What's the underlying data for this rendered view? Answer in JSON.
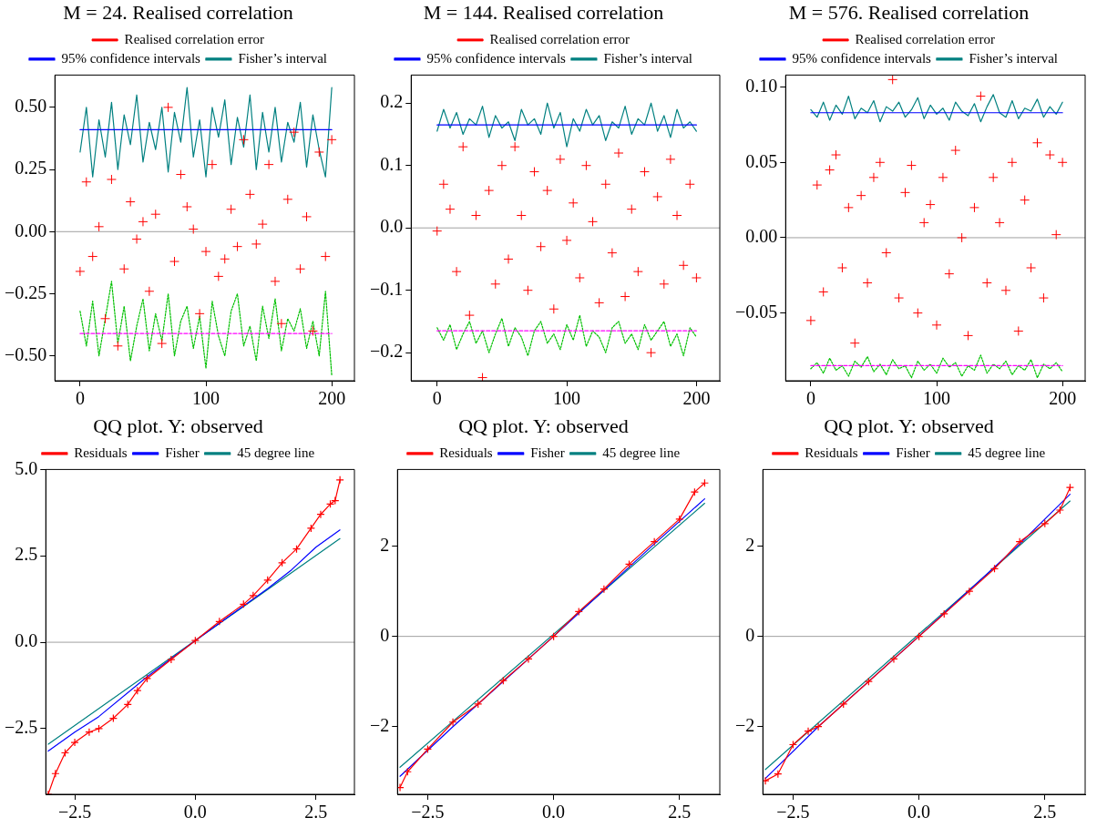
{
  "chart_data": [
    {
      "type": "scatter",
      "title": "M = 24. Realised correlation",
      "legend": "top",
      "xlim": [
        -20,
        218
      ],
      "xticks": [
        0,
        100,
        200
      ],
      "ylim": [
        -0.6,
        0.63
      ],
      "yticks": [
        {
          "value": -0.5,
          "label": "−0.50"
        },
        {
          "value": -0.25,
          "label": "−0.25"
        },
        {
          "value": 0,
          "label": "0.00"
        },
        {
          "value": 0.25,
          "label": "0.25"
        },
        {
          "value": 0.5,
          "label": "0.50"
        }
      ],
      "ref_lines": [
        {
          "axis": "y",
          "value": 0,
          "color": "#a0a0a0"
        }
      ],
      "series": [
        {
          "name": "Realised correlation error",
          "marker": "cross",
          "color": "#ff0000",
          "x": [
            0,
            5,
            10,
            15,
            20,
            25,
            30,
            35,
            40,
            45,
            50,
            55,
            60,
            65,
            70,
            75,
            80,
            85,
            90,
            95,
            100,
            105,
            110,
            115,
            120,
            125,
            130,
            135,
            140,
            145,
            150,
            155,
            160,
            165,
            170,
            175,
            180,
            185,
            190,
            195,
            200
          ],
          "values": [
            -0.16,
            0.2,
            -0.1,
            0.02,
            -0.35,
            0.21,
            -0.46,
            -0.15,
            0.12,
            -0.03,
            0.04,
            -0.24,
            0.07,
            -0.45,
            0.5,
            -0.12,
            0.23,
            0.1,
            0.01,
            -0.33,
            -0.08,
            0.27,
            -0.18,
            -0.11,
            0.09,
            -0.06,
            0.37,
            0.15,
            -0.05,
            0.03,
            0.27,
            -0.2,
            -0.37,
            0.13,
            0.4,
            -0.15,
            0.06,
            -0.4,
            0.32,
            -0.1,
            0.37
          ]
        },
        {
          "name": "95% confidence intervals",
          "type": "line",
          "marker": "none",
          "line_style": "solid",
          "color": "#0000ff",
          "x": [
            0,
            200
          ],
          "values": [
            0.41,
            0.41
          ]
        },
        {
          "name": "Fisher’s interval",
          "type": "line",
          "marker": "none",
          "line_style": "solid",
          "color": "#008080",
          "x": [
            0,
            5,
            10,
            15,
            20,
            25,
            30,
            35,
            40,
            45,
            50,
            55,
            60,
            65,
            70,
            75,
            80,
            85,
            90,
            95,
            100,
            105,
            110,
            115,
            120,
            125,
            130,
            135,
            140,
            145,
            150,
            155,
            160,
            165,
            170,
            175,
            180,
            185,
            190,
            195,
            200
          ],
          "values": [
            0.32,
            0.5,
            0.22,
            0.45,
            0.3,
            0.52,
            0.25,
            0.47,
            0.35,
            0.55,
            0.28,
            0.44,
            0.33,
            0.5,
            0.24,
            0.48,
            0.36,
            0.58,
            0.3,
            0.45,
            0.22,
            0.5,
            0.38,
            0.53,
            0.27,
            0.46,
            0.34,
            0.55,
            0.25,
            0.48,
            0.32,
            0.5,
            0.28,
            0.44,
            0.36,
            0.52,
            0.26,
            0.47,
            0.33,
            0.22,
            0.58
          ]
        },
        {
          "type": "line",
          "marker": "none",
          "line_style": "dashed",
          "color": "#ff00ff",
          "x": [
            0,
            200
          ],
          "values": [
            -0.41,
            -0.41
          ]
        },
        {
          "type": "line",
          "marker": "none",
          "line_style": "dotted",
          "color": "#00c000",
          "x": [
            0,
            5,
            10,
            15,
            20,
            25,
            30,
            35,
            40,
            45,
            50,
            55,
            60,
            65,
            70,
            75,
            80,
            85,
            90,
            95,
            100,
            105,
            110,
            115,
            120,
            125,
            130,
            135,
            140,
            145,
            150,
            155,
            160,
            165,
            170,
            175,
            180,
            185,
            190,
            195,
            200
          ],
          "values": [
            -0.32,
            -0.46,
            -0.28,
            -0.5,
            -0.35,
            -0.2,
            -0.45,
            -0.3,
            -0.52,
            -0.38,
            -0.27,
            -0.48,
            -0.33,
            -0.44,
            -0.25,
            -0.5,
            -0.36,
            -0.3,
            -0.47,
            -0.34,
            -0.55,
            -0.28,
            -0.42,
            -0.5,
            -0.32,
            -0.25,
            -0.46,
            -0.38,
            -0.52,
            -0.3,
            -0.43,
            -0.27,
            -0.48,
            -0.35,
            -0.4,
            -0.31,
            -0.47,
            -0.36,
            -0.5,
            -0.24,
            -0.58
          ]
        }
      ]
    },
    {
      "type": "scatter",
      "title": "M = 144. Realised correlation",
      "legend": "top",
      "xlim": [
        -20,
        218
      ],
      "xticks": [
        0,
        100,
        200
      ],
      "ylim": [
        -0.245,
        0.245
      ],
      "yticks": [
        {
          "value": -0.2,
          "label": "−0.2"
        },
        {
          "value": -0.1,
          "label": "−0.1"
        },
        {
          "value": 0,
          "label": "0.0"
        },
        0.1,
        0.2
      ],
      "ref_lines": [
        {
          "axis": "y",
          "value": 0,
          "color": "#a0a0a0"
        }
      ],
      "series": [
        {
          "name": "Realised correlation error",
          "marker": "cross",
          "color": "#ff0000",
          "x": [
            0,
            5,
            10,
            15,
            20,
            25,
            30,
            35,
            40,
            45,
            50,
            55,
            60,
            65,
            70,
            75,
            80,
            85,
            90,
            95,
            100,
            105,
            110,
            115,
            120,
            125,
            130,
            135,
            140,
            145,
            150,
            155,
            160,
            165,
            170,
            175,
            180,
            185,
            190,
            195,
            200
          ],
          "values": [
            -0.005,
            0.07,
            0.03,
            -0.07,
            0.13,
            -0.14,
            0.02,
            -0.24,
            0.06,
            -0.09,
            0.1,
            -0.05,
            0.13,
            0.02,
            -0.1,
            0.09,
            -0.03,
            0.06,
            -0.13,
            0.11,
            -0.02,
            0.04,
            -0.08,
            0.1,
            0.01,
            -0.12,
            0.07,
            -0.04,
            0.12,
            -0.11,
            0.03,
            -0.07,
            0.09,
            -0.2,
            0.05,
            -0.09,
            0.11,
            0.02,
            -0.06,
            0.07,
            -0.08
          ]
        },
        {
          "name": "95% confidence intervals",
          "type": "line",
          "marker": "none",
          "line_style": "solid",
          "color": "#0000ff",
          "x": [
            0,
            200
          ],
          "values": [
            0.165,
            0.165
          ]
        },
        {
          "name": "Fisher’s interval",
          "type": "line",
          "marker": "none",
          "line_style": "solid",
          "color": "#008080",
          "x": [
            0,
            5,
            10,
            15,
            20,
            25,
            30,
            35,
            40,
            45,
            50,
            55,
            60,
            65,
            70,
            75,
            80,
            85,
            90,
            95,
            100,
            105,
            110,
            115,
            120,
            125,
            130,
            135,
            140,
            145,
            150,
            155,
            160,
            165,
            170,
            175,
            180,
            185,
            190,
            195,
            200
          ],
          "values": [
            0.155,
            0.19,
            0.16,
            0.185,
            0.15,
            0.175,
            0.165,
            0.195,
            0.145,
            0.18,
            0.16,
            0.17,
            0.14,
            0.19,
            0.165,
            0.175,
            0.15,
            0.2,
            0.16,
            0.185,
            0.13,
            0.175,
            0.155,
            0.19,
            0.165,
            0.18,
            0.14,
            0.17,
            0.16,
            0.195,
            0.15,
            0.175,
            0.165,
            0.2,
            0.155,
            0.18,
            0.145,
            0.19,
            0.16,
            0.17,
            0.155
          ]
        },
        {
          "type": "line",
          "marker": "none",
          "line_style": "dashed",
          "color": "#ff00ff",
          "x": [
            0,
            200
          ],
          "values": [
            -0.165,
            -0.165
          ]
        },
        {
          "type": "line",
          "marker": "none",
          "line_style": "dotted",
          "color": "#00c000",
          "x": [
            0,
            5,
            10,
            15,
            20,
            25,
            30,
            35,
            40,
            45,
            50,
            55,
            60,
            65,
            70,
            75,
            80,
            85,
            90,
            95,
            100,
            105,
            110,
            115,
            120,
            125,
            130,
            135,
            140,
            145,
            150,
            155,
            160,
            165,
            170,
            175,
            180,
            185,
            190,
            195,
            200
          ],
          "values": [
            -0.16,
            -0.18,
            -0.155,
            -0.195,
            -0.17,
            -0.15,
            -0.185,
            -0.165,
            -0.2,
            -0.17,
            -0.145,
            -0.19,
            -0.16,
            -0.175,
            -0.205,
            -0.165,
            -0.15,
            -0.185,
            -0.17,
            -0.195,
            -0.155,
            -0.18,
            -0.14,
            -0.19,
            -0.165,
            -0.175,
            -0.2,
            -0.16,
            -0.15,
            -0.185,
            -0.17,
            -0.195,
            -0.155,
            -0.18,
            -0.165,
            -0.15,
            -0.19,
            -0.17,
            -0.205,
            -0.16,
            -0.175
          ]
        }
      ]
    },
    {
      "type": "scatter",
      "title": "M = 576. Realised correlation",
      "legend": "top",
      "xlim": [
        -20,
        218
      ],
      "xticks": [
        0,
        100,
        200
      ],
      "ylim": [
        -0.095,
        0.108
      ],
      "yticks": [
        {
          "value": -0.05,
          "label": "−0.05"
        },
        {
          "value": 0,
          "label": "0.00"
        },
        {
          "value": 0.05,
          "label": "0.05"
        },
        {
          "value": 0.1,
          "label": "0.10"
        }
      ],
      "ref_lines": [
        {
          "axis": "y",
          "value": 0,
          "color": "#a0a0a0"
        }
      ],
      "series": [
        {
          "name": "Realised correlation error",
          "marker": "cross",
          "color": "#ff0000",
          "x": [
            0,
            5,
            10,
            15,
            20,
            25,
            30,
            35,
            40,
            45,
            50,
            55,
            60,
            65,
            70,
            75,
            80,
            85,
            90,
            95,
            100,
            105,
            110,
            115,
            120,
            125,
            130,
            135,
            140,
            145,
            150,
            155,
            160,
            165,
            170,
            175,
            180,
            185,
            190,
            195,
            200
          ],
          "values": [
            -0.055,
            0.035,
            -0.036,
            0.045,
            0.055,
            -0.02,
            0.02,
            -0.07,
            0.028,
            -0.03,
            0.04,
            0.05,
            -0.01,
            0.105,
            -0.04,
            0.03,
            0.048,
            -0.05,
            0.01,
            0.022,
            -0.058,
            0.04,
            -0.024,
            0.058,
            0.0,
            -0.065,
            0.02,
            0.094,
            -0.03,
            0.04,
            0.01,
            -0.035,
            0.05,
            -0.062,
            0.025,
            -0.02,
            0.063,
            -0.04,
            0.055,
            0.002,
            0.05
          ]
        },
        {
          "name": "95% confidence intervals",
          "type": "line",
          "marker": "none",
          "line_style": "solid",
          "color": "#0000ff",
          "x": [
            0,
            200
          ],
          "values": [
            0.083,
            0.083
          ]
        },
        {
          "name": "Fisher’s interval",
          "type": "line",
          "marker": "none",
          "line_style": "solid",
          "color": "#008080",
          "x": [
            0,
            5,
            10,
            15,
            20,
            25,
            30,
            35,
            40,
            45,
            50,
            55,
            60,
            65,
            70,
            75,
            80,
            85,
            90,
            95,
            100,
            105,
            110,
            115,
            120,
            125,
            130,
            135,
            140,
            145,
            150,
            155,
            160,
            165,
            170,
            175,
            180,
            185,
            190,
            195,
            200
          ],
          "values": [
            0.085,
            0.08,
            0.09,
            0.078,
            0.088,
            0.082,
            0.094,
            0.079,
            0.086,
            0.083,
            0.091,
            0.077,
            0.087,
            0.084,
            0.09,
            0.08,
            0.085,
            0.093,
            0.079,
            0.088,
            0.082,
            0.086,
            0.078,
            0.09,
            0.084,
            0.081,
            0.089,
            0.077,
            0.087,
            0.095,
            0.083,
            0.08,
            0.091,
            0.079,
            0.086,
            0.084,
            0.092,
            0.08,
            0.087,
            0.082,
            0.09
          ]
        },
        {
          "type": "line",
          "marker": "none",
          "line_style": "dashed",
          "color": "#ff00ff",
          "x": [
            0,
            200
          ],
          "values": [
            -0.085,
            -0.085
          ]
        },
        {
          "type": "line",
          "marker": "none",
          "line_style": "dotted",
          "color": "#00c000",
          "x": [
            0,
            5,
            10,
            15,
            20,
            25,
            30,
            35,
            40,
            45,
            50,
            55,
            60,
            65,
            70,
            75,
            80,
            85,
            90,
            95,
            100,
            105,
            110,
            115,
            120,
            125,
            130,
            135,
            140,
            145,
            150,
            155,
            160,
            165,
            170,
            175,
            180,
            185,
            190,
            195,
            200
          ],
          "values": [
            -0.087,
            -0.083,
            -0.09,
            -0.08,
            -0.088,
            -0.085,
            -0.092,
            -0.082,
            -0.086,
            -0.079,
            -0.089,
            -0.084,
            -0.091,
            -0.081,
            -0.087,
            -0.085,
            -0.093,
            -0.082,
            -0.088,
            -0.084,
            -0.09,
            -0.08,
            -0.086,
            -0.083,
            -0.092,
            -0.085,
            -0.088,
            -0.078,
            -0.09,
            -0.084,
            -0.087,
            -0.082,
            -0.091,
            -0.085,
            -0.088,
            -0.081,
            -0.093,
            -0.084,
            -0.087,
            -0.083,
            -0.089
          ]
        }
      ]
    },
    {
      "type": "line",
      "title": "QQ plot. Y: observed",
      "legend": "top",
      "xlim": [
        -3.1,
        3.3
      ],
      "xticks": [
        {
          "value": -2.5,
          "label": "−2.5"
        },
        {
          "value": 0,
          "label": "0.0"
        },
        {
          "value": 2.5,
          "label": "2.5"
        }
      ],
      "ylim": [
        -4.4,
        5.0
      ],
      "yticks": [
        {
          "value": -2.5,
          "label": "−2.5"
        },
        {
          "value": 0,
          "label": "0.0"
        },
        {
          "value": 2.5,
          "label": "2.5"
        },
        {
          "value": 5,
          "label": "5.0"
        }
      ],
      "ref_lines": [
        {
          "axis": "y",
          "value": 0,
          "color": "#a0a0a0"
        }
      ],
      "series": [
        {
          "name": "Residuals",
          "marker": "cross",
          "line_style": "solid",
          "color": "#ff0000",
          "x": [
            -3.05,
            -2.9,
            -2.7,
            -2.5,
            -2.2,
            -2.0,
            -1.7,
            -1.4,
            -1.2,
            -1.0,
            -0.5,
            0,
            0.5,
            1.0,
            1.2,
            1.5,
            1.8,
            2.1,
            2.4,
            2.6,
            2.8,
            2.9,
            3.0
          ],
          "values": [
            -4.4,
            -3.8,
            -3.2,
            -2.9,
            -2.6,
            -2.5,
            -2.2,
            -1.8,
            -1.4,
            -1.05,
            -0.5,
            0.05,
            0.6,
            1.1,
            1.35,
            1.8,
            2.3,
            2.7,
            3.3,
            3.7,
            4.0,
            4.1,
            4.7
          ]
        },
        {
          "name": "Fisher",
          "marker": "none",
          "line_style": "solid",
          "color": "#0000ff",
          "x": [
            -3.05,
            -2.5,
            -2.0,
            -1.0,
            0,
            1.0,
            1.5,
            2.0,
            2.5,
            3.0
          ],
          "values": [
            -3.15,
            -2.6,
            -2.15,
            -1.0,
            0.05,
            1.05,
            1.55,
            2.1,
            2.75,
            3.25
          ]
        },
        {
          "name": "45 degree line",
          "marker": "none",
          "line_style": "solid",
          "color": "#008080",
          "x": [
            -3.05,
            3.0
          ],
          "values": [
            -2.95,
            3.0
          ]
        }
      ]
    },
    {
      "type": "line",
      "title": "QQ plot. Y: observed",
      "legend": "top",
      "xlim": [
        -3.1,
        3.3
      ],
      "xticks": [
        {
          "value": -2.5,
          "label": "−2.5"
        },
        {
          "value": 0,
          "label": "0.0"
        },
        {
          "value": 2.5,
          "label": "2.5"
        }
      ],
      "ylim": [
        -3.5,
        3.7
      ],
      "yticks": [
        {
          "value": -2,
          "label": "−2"
        },
        0,
        2
      ],
      "ref_lines": [
        {
          "axis": "y",
          "value": 0,
          "color": "#a0a0a0"
        }
      ],
      "series": [
        {
          "name": "Residuals",
          "marker": "cross",
          "line_style": "solid",
          "color": "#ff0000",
          "x": [
            -3.05,
            -2.9,
            -2.5,
            -2.0,
            -1.5,
            -1.0,
            -0.5,
            0,
            0.5,
            1.0,
            1.5,
            2.0,
            2.5,
            2.8,
            3.0
          ],
          "values": [
            -3.35,
            -3.0,
            -2.5,
            -1.9,
            -1.5,
            -0.98,
            -0.5,
            0.0,
            0.55,
            1.05,
            1.6,
            2.1,
            2.6,
            3.2,
            3.4
          ]
        },
        {
          "name": "Fisher",
          "marker": "none",
          "line_style": "solid",
          "color": "#0000ff",
          "x": [
            -3.05,
            -2.0,
            0,
            2.0,
            3.0
          ],
          "values": [
            -3.1,
            -2.0,
            0,
            2.05,
            3.05
          ]
        },
        {
          "name": "45 degree line",
          "marker": "none",
          "line_style": "solid",
          "color": "#008080",
          "x": [
            -3.05,
            3.0
          ],
          "values": [
            -2.9,
            2.95
          ]
        }
      ]
    },
    {
      "type": "line",
      "title": "QQ plot. Y: observed",
      "legend": "top",
      "xlim": [
        -3.1,
        3.3
      ],
      "xticks": [
        {
          "value": -2.5,
          "label": "−2.5"
        },
        {
          "value": 0,
          "label": "0.0"
        },
        {
          "value": 2.5,
          "label": "2.5"
        }
      ],
      "ylim": [
        -3.5,
        3.7
      ],
      "yticks": [
        {
          "value": -2,
          "label": "−2"
        },
        0,
        2
      ],
      "ref_lines": [
        {
          "axis": "y",
          "value": 0,
          "color": "#a0a0a0"
        }
      ],
      "series": [
        {
          "name": "Residuals",
          "marker": "cross",
          "line_style": "solid",
          "color": "#ff0000",
          "x": [
            -3.05,
            -2.8,
            -2.5,
            -2.2,
            -2.0,
            -1.5,
            -1.0,
            -0.5,
            0,
            0.5,
            1.0,
            1.5,
            2.0,
            2.5,
            2.8,
            3.0
          ],
          "values": [
            -3.2,
            -3.05,
            -2.4,
            -2.1,
            -2.0,
            -1.5,
            -1.0,
            -0.5,
            0,
            0.5,
            1.0,
            1.5,
            2.1,
            2.5,
            2.8,
            3.3
          ]
        },
        {
          "name": "Fisher",
          "marker": "none",
          "line_style": "solid",
          "color": "#0000ff",
          "x": [
            -3.05,
            -2.0,
            0,
            2.0,
            3.0
          ],
          "values": [
            -3.15,
            -2.0,
            0,
            2.05,
            3.15
          ]
        },
        {
          "name": "45 degree line",
          "marker": "none",
          "line_style": "solid",
          "color": "#008080",
          "x": [
            -3.05,
            3.0
          ],
          "values": [
            -2.95,
            3.0
          ]
        }
      ]
    }
  ]
}
